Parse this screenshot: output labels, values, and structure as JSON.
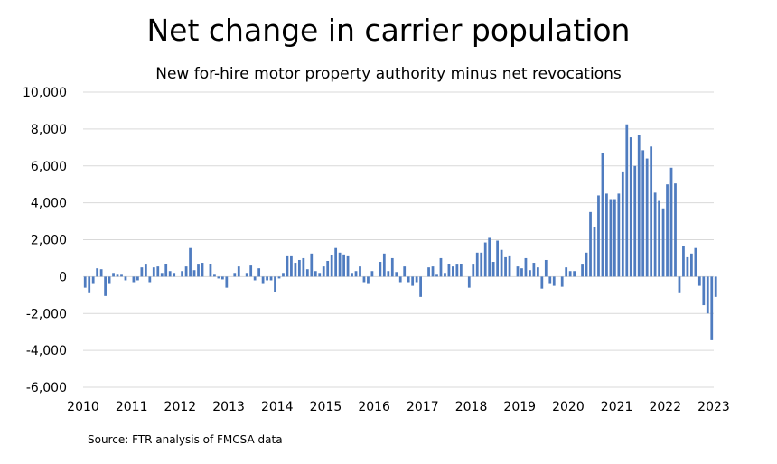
{
  "chart_data": {
    "type": "bar",
    "title": "Net change in carrier population",
    "subtitle": "New for-hire motor property authority minus net revocations",
    "xlabel": "",
    "ylabel": "",
    "ylim": [
      -6000,
      10000
    ],
    "y_ticks": [
      {
        "value": -6000,
        "label": "-6,000"
      },
      {
        "value": -4000,
        "label": "-4,000"
      },
      {
        "value": -2000,
        "label": "-2,000"
      },
      {
        "value": 0,
        "label": "0"
      },
      {
        "value": 2000,
        "label": "2,000"
      },
      {
        "value": 4000,
        "label": "4,000"
      },
      {
        "value": 6000,
        "label": "6,000"
      },
      {
        "value": 8000,
        "label": "8,000"
      },
      {
        "value": 10000,
        "label": "10,000"
      }
    ],
    "x_start_year": 2010,
    "x_end_year": 2023,
    "x_tick_labels": [
      "2010",
      "2011",
      "2012",
      "2013",
      "2014",
      "2015",
      "2016",
      "2017",
      "2018",
      "2019",
      "2020",
      "2021",
      "2022",
      "2023"
    ],
    "gridlines": true,
    "bar_color": "#4F7CC0",
    "series": [
      {
        "name": "Net change",
        "start": "2010-01",
        "frequency": "monthly",
        "values": [
          -600,
          -900,
          -400,
          450,
          400,
          -1050,
          -400,
          200,
          100,
          100,
          -200,
          0,
          -300,
          -200,
          500,
          650,
          -300,
          500,
          550,
          200,
          700,
          300,
          200,
          0,
          300,
          550,
          1550,
          350,
          650,
          750,
          0,
          700,
          100,
          -100,
          -150,
          -600,
          0,
          200,
          550,
          0,
          200,
          600,
          -200,
          450,
          -400,
          -200,
          -200,
          -850,
          -100,
          200,
          1100,
          1100,
          750,
          900,
          1000,
          400,
          1250,
          300,
          200,
          550,
          850,
          1150,
          1550,
          1300,
          1200,
          1100,
          200,
          300,
          550,
          -300,
          -400,
          300,
          0,
          800,
          1250,
          300,
          1000,
          250,
          -300,
          550,
          -300,
          -500,
          -300,
          -1100,
          0,
          500,
          550,
          100,
          1000,
          200,
          700,
          550,
          650,
          700,
          0,
          -600,
          650,
          1300,
          1300,
          1850,
          2100,
          800,
          1950,
          1450,
          1050,
          1100,
          0,
          550,
          450,
          1000,
          350,
          750,
          500,
          -650,
          900,
          -400,
          -500,
          0,
          -550,
          500,
          300,
          300,
          0,
          650,
          1300,
          3500,
          2700,
          4400,
          6700,
          4500,
          4200,
          4200,
          4500,
          5700,
          8250,
          7550,
          6000,
          7700,
          6850,
          6400,
          7050,
          4550,
          4100,
          3700,
          5000,
          5900,
          5050,
          -900,
          1650,
          1050,
          1250,
          1550,
          -500,
          -1550,
          -2000,
          -3450,
          -1100
        ]
      }
    ]
  },
  "source_note": "Source: FTR analysis of FMCSA data"
}
